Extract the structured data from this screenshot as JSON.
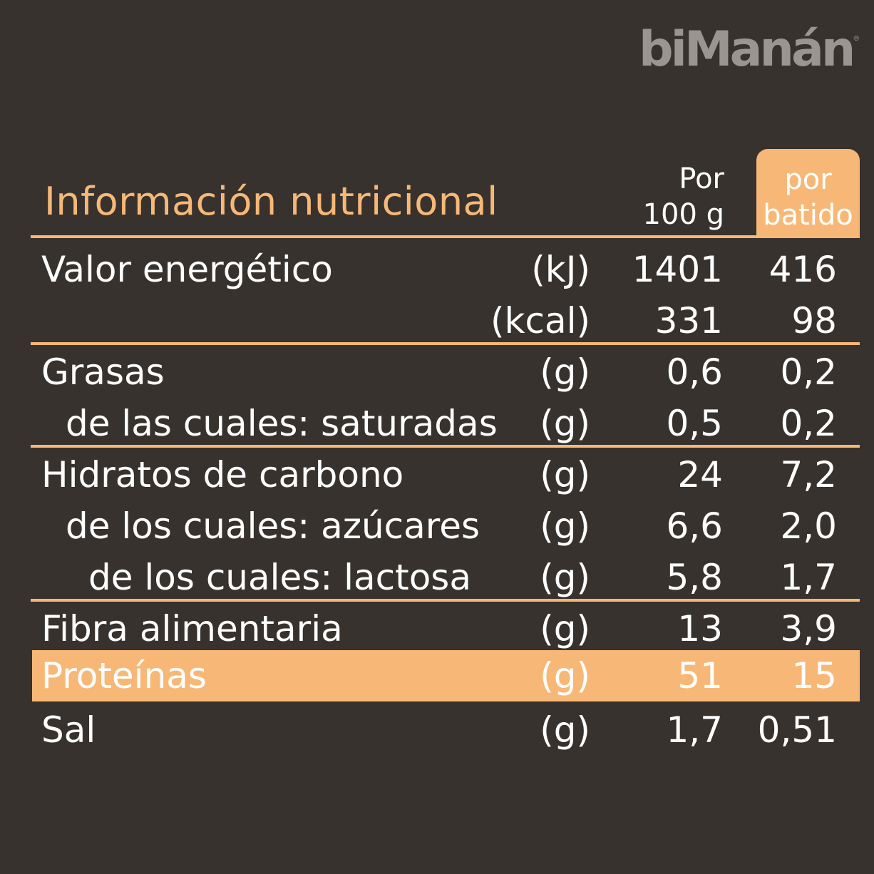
{
  "brand": {
    "name": "biManán",
    "mark": "®"
  },
  "title": "Información nutricional",
  "columns": {
    "per100_line1": "Por",
    "per100_line2": "100 g",
    "serving_line1": "por",
    "serving_line2": "batido"
  },
  "rows": [
    {
      "label": "Valor energético",
      "unit": "(kJ)",
      "per100": "1401",
      "serving": "416"
    },
    {
      "label": "",
      "unit": "(kcal)",
      "per100": "331",
      "serving": "98"
    },
    {
      "label": "Grasas",
      "unit": "(g)",
      "per100": "0,6",
      "serving": "0,2"
    },
    {
      "label": "de las cuales: saturadas",
      "unit": "(g)",
      "per100": "0,5",
      "serving": "0,2"
    },
    {
      "label": "Hidratos de carbono",
      "unit": "(g)",
      "per100": "24",
      "serving": "7,2"
    },
    {
      "label": "de los cuales: azúcares",
      "unit": "(g)",
      "per100": "6,6",
      "serving": "2,0"
    },
    {
      "label": "de los cuales: lactosa",
      "unit": "(g)",
      "per100": "5,8",
      "serving": "1,7"
    },
    {
      "label": "Fibra alimentaria",
      "unit": "(g)",
      "per100": "13",
      "serving": "3,9"
    },
    {
      "label": "Proteínas",
      "unit": "(g)",
      "per100": "51",
      "serving": "15"
    },
    {
      "label": "Sal",
      "unit": "(g)",
      "per100": "1,7",
      "serving": "0,51"
    }
  ],
  "colors": {
    "background": "#37322d",
    "accent": "#f7b877",
    "logo": "#9a958f",
    "text": "#ffffff"
  }
}
